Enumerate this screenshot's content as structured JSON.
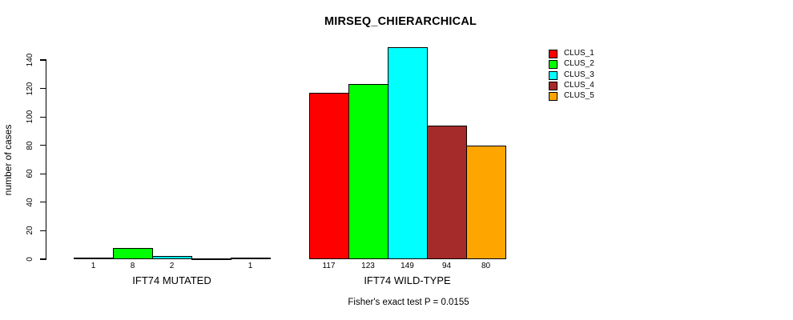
{
  "title": "MIRSEQ_CHIERARCHICAL",
  "footer": "Fisher's exact test P = 0.0155",
  "chart_data": {
    "type": "bar",
    "title": "MIRSEQ_CHIERARCHICAL",
    "xlabel": "",
    "ylabel": "number of cases",
    "ylim": [
      0,
      140
    ],
    "yticks": [
      0,
      20,
      40,
      60,
      80,
      100,
      120,
      140
    ],
    "grid": false,
    "legend_position": "top-right",
    "categories": [
      "IFT74 MUTATED",
      "IFT74 WILD-TYPE"
    ],
    "series": [
      {
        "name": "CLUS_1",
        "color": "#FF0000",
        "values": [
          1,
          117
        ]
      },
      {
        "name": "CLUS_2",
        "color": "#00FF00",
        "values": [
          8,
          123
        ]
      },
      {
        "name": "CLUS_3",
        "color": "#00FFFF",
        "values": [
          2,
          149
        ]
      },
      {
        "name": "CLUS_4",
        "color": "#A52A2A",
        "values": [
          0,
          94
        ]
      },
      {
        "name": "CLUS_5",
        "color": "#FFA500",
        "values": [
          1,
          80
        ]
      }
    ],
    "bar_value_labels": [
      [
        "1",
        "8",
        "2",
        "",
        "1"
      ],
      [
        "117",
        "123",
        "149",
        "94",
        "80"
      ]
    ],
    "annotation": "Fisher's exact test P = 0.0155"
  }
}
